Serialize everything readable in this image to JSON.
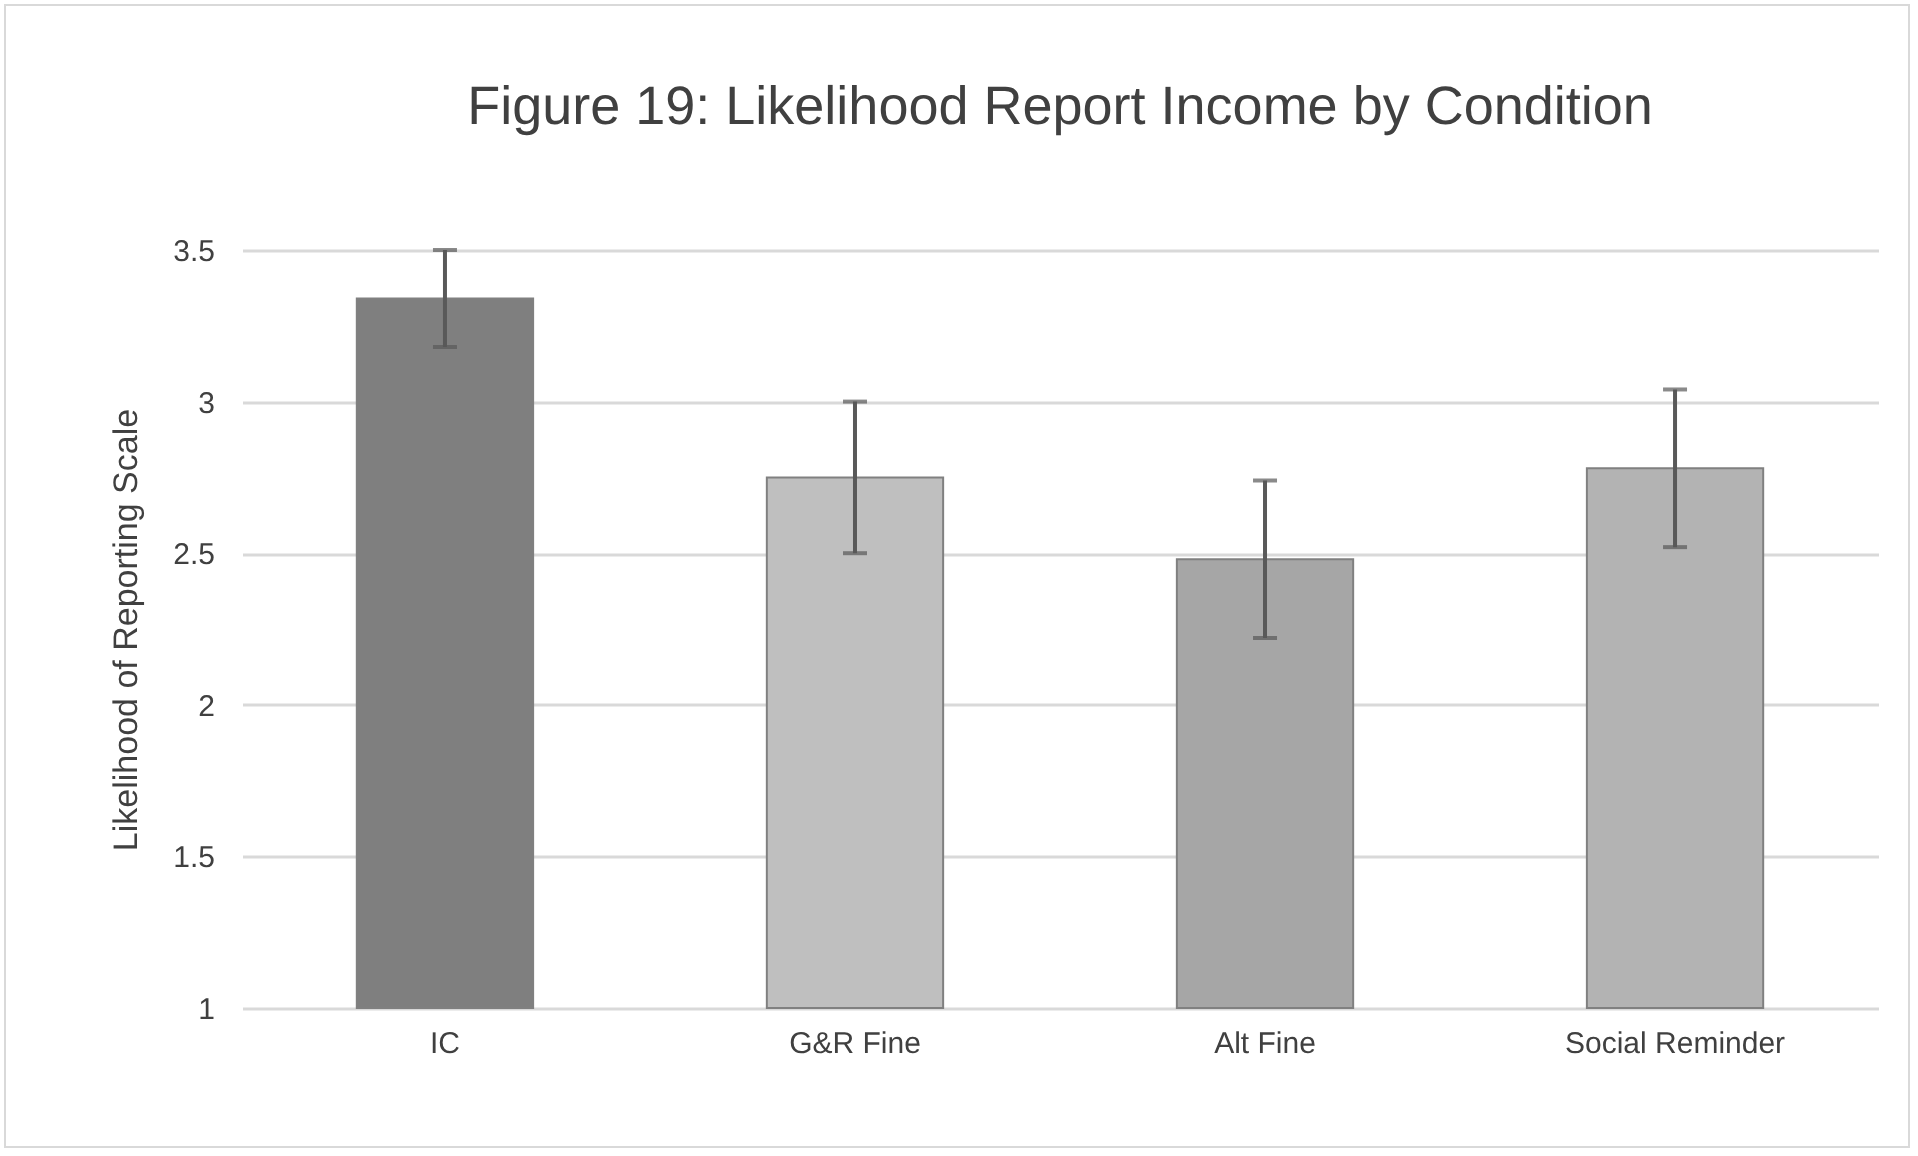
{
  "chart_data": {
    "type": "bar",
    "title": "Figure 19: Likelihood Report Income by Condition",
    "ylabel": "Likelihood of Reporting Scale",
    "categories": [
      "IC",
      "G&R Fine",
      "Alt Fine",
      "Social Reminder"
    ],
    "values": [
      3.34,
      2.75,
      2.48,
      2.78
    ],
    "errors": [
      0.16,
      0.25,
      0.26,
      0.26
    ],
    "colors": [
      "#7f7f7f",
      "#bfbfbf",
      "#a6a6a6",
      "#b3b3b3"
    ],
    "ylim": [
      1,
      3.5
    ],
    "yticks": [
      1,
      1.5,
      2,
      2.5,
      3,
      3.5
    ],
    "grid": "y"
  }
}
